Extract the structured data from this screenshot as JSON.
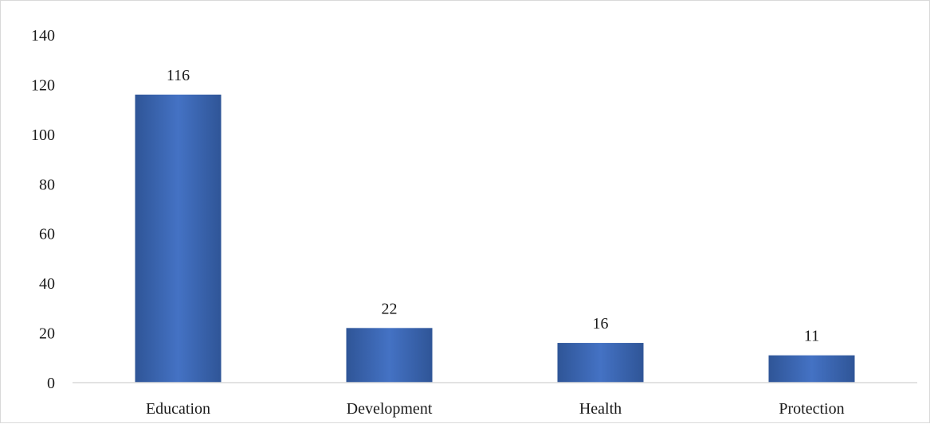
{
  "chart_data": {
    "type": "bar",
    "title": "",
    "xlabel": "",
    "ylabel": "",
    "categories": [
      "Education",
      "Development",
      "Health",
      "Protection"
    ],
    "values": [
      116,
      22,
      16,
      11
    ],
    "data_labels": [
      "116",
      "22",
      "16",
      "11"
    ],
    "ylim": [
      0,
      140
    ],
    "yticks": [
      0,
      20,
      40,
      60,
      80,
      100,
      120,
      140
    ],
    "ytick_labels": [
      "0",
      "20",
      "40",
      "60",
      "80",
      "100",
      "120",
      "140"
    ],
    "grid": false,
    "legend": "none",
    "bar_color": "#4472c4",
    "bar_color_dark": "#2f5597"
  }
}
